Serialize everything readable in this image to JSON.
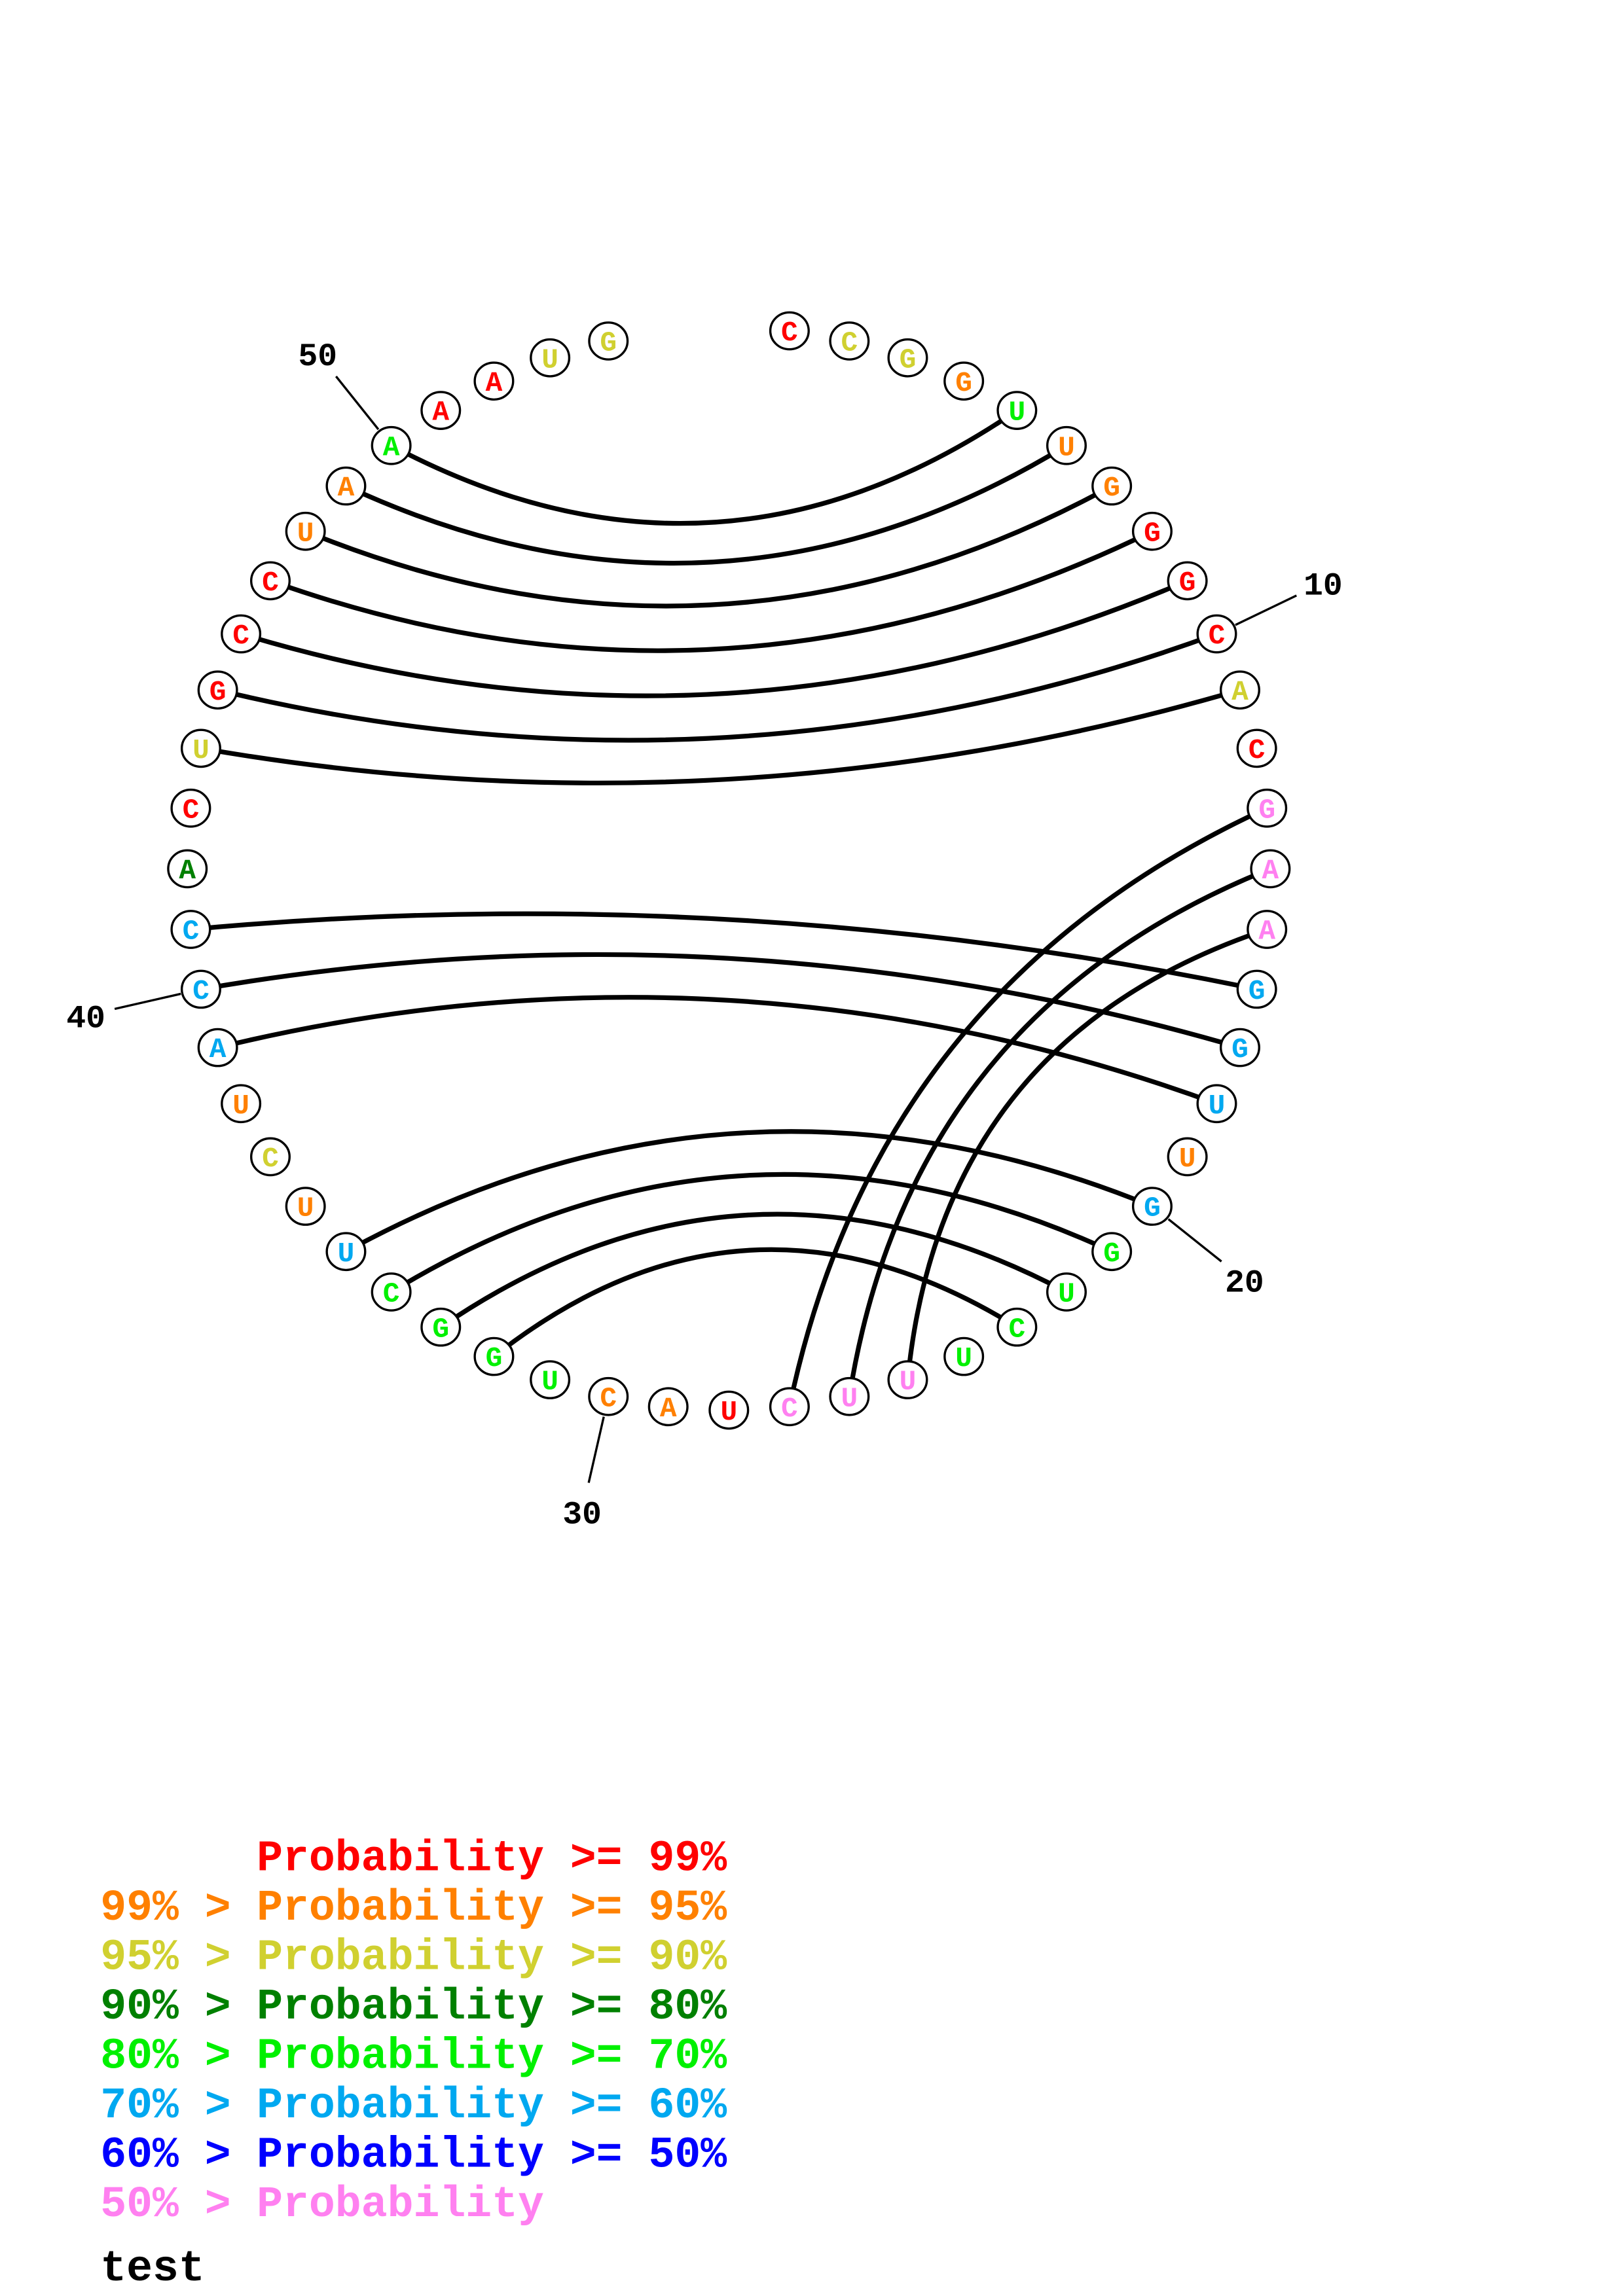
{
  "colors": {
    "red": "#ff0000",
    "orange": "#ff8000",
    "yellow": "#d0d030",
    "darkgreen": "#008000",
    "green": "#00f000",
    "cyan": "#00a8f0",
    "blue": "#0000ff",
    "pink": "#ff80f0",
    "black": "#000000"
  },
  "nucleotides": [
    {
      "base": "C",
      "color": "red"
    },
    {
      "base": "C",
      "color": "yellow"
    },
    {
      "base": "G",
      "color": "yellow"
    },
    {
      "base": "G",
      "color": "orange"
    },
    {
      "base": "U",
      "color": "green"
    },
    {
      "base": "U",
      "color": "orange"
    },
    {
      "base": "G",
      "color": "orange"
    },
    {
      "base": "G",
      "color": "red"
    },
    {
      "base": "G",
      "color": "red"
    },
    {
      "base": "C",
      "color": "red"
    },
    {
      "base": "A",
      "color": "yellow"
    },
    {
      "base": "C",
      "color": "red"
    },
    {
      "base": "G",
      "color": "pink"
    },
    {
      "base": "A",
      "color": "pink"
    },
    {
      "base": "A",
      "color": "pink"
    },
    {
      "base": "G",
      "color": "cyan"
    },
    {
      "base": "G",
      "color": "cyan"
    },
    {
      "base": "U",
      "color": "cyan"
    },
    {
      "base": "U",
      "color": "orange"
    },
    {
      "base": "G",
      "color": "cyan"
    },
    {
      "base": "G",
      "color": "green"
    },
    {
      "base": "U",
      "color": "green"
    },
    {
      "base": "C",
      "color": "green"
    },
    {
      "base": "U",
      "color": "green"
    },
    {
      "base": "U",
      "color": "pink"
    },
    {
      "base": "U",
      "color": "pink"
    },
    {
      "base": "C",
      "color": "pink"
    },
    {
      "base": "U",
      "color": "red"
    },
    {
      "base": "A",
      "color": "orange"
    },
    {
      "base": "C",
      "color": "orange"
    },
    {
      "base": "U",
      "color": "green"
    },
    {
      "base": "G",
      "color": "green"
    },
    {
      "base": "G",
      "color": "green"
    },
    {
      "base": "C",
      "color": "green"
    },
    {
      "base": "U",
      "color": "cyan"
    },
    {
      "base": "U",
      "color": "orange"
    },
    {
      "base": "C",
      "color": "yellow"
    },
    {
      "base": "U",
      "color": "orange"
    },
    {
      "base": "A",
      "color": "cyan"
    },
    {
      "base": "C",
      "color": "cyan"
    },
    {
      "base": "C",
      "color": "cyan"
    },
    {
      "base": "A",
      "color": "darkgreen"
    },
    {
      "base": "C",
      "color": "red"
    },
    {
      "base": "U",
      "color": "yellow"
    },
    {
      "base": "G",
      "color": "red"
    },
    {
      "base": "C",
      "color": "red"
    },
    {
      "base": "C",
      "color": "red"
    },
    {
      "base": "U",
      "color": "orange"
    },
    {
      "base": "A",
      "color": "orange"
    },
    {
      "base": "A",
      "color": "green"
    },
    {
      "base": "A",
      "color": "red"
    },
    {
      "base": "A",
      "color": "red"
    },
    {
      "base": "U",
      "color": "yellow"
    },
    {
      "base": "G",
      "color": "yellow"
    }
  ],
  "pairs": [
    [
      50,
      5
    ],
    [
      49,
      6
    ],
    [
      48,
      7
    ],
    [
      47,
      8
    ],
    [
      46,
      9
    ],
    [
      45,
      10
    ],
    [
      44,
      11
    ],
    [
      41,
      16
    ],
    [
      40,
      17
    ],
    [
      39,
      18
    ],
    [
      35,
      20
    ],
    [
      34,
      21
    ],
    [
      33,
      22
    ],
    [
      32,
      23
    ],
    [
      27,
      13
    ],
    [
      26,
      14
    ],
    [
      25,
      15
    ]
  ],
  "tick_labels": [
    "10",
    "20",
    "30",
    "40",
    "50"
  ],
  "legend": [
    {
      "prefix": "    ",
      "text": "Probability >= 99%",
      "color": "red"
    },
    {
      "prefix": "99% > ",
      "text": "Probability >= 95%",
      "color": "orange"
    },
    {
      "prefix": "95% > ",
      "text": "Probability >= 90%",
      "color": "yellow"
    },
    {
      "prefix": "90% > ",
      "text": "Probability >= 80%",
      "color": "darkgreen"
    },
    {
      "prefix": "80% > ",
      "text": "Probability >= 70%",
      "color": "green"
    },
    {
      "prefix": "70% > ",
      "text": "Probability >= 60%",
      "color": "cyan"
    },
    {
      "prefix": "60% > ",
      "text": "Probability >= 50%",
      "color": "blue"
    },
    {
      "prefix": "50% > ",
      "text": "Probability",
      "color": "pink"
    }
  ],
  "title": "test"
}
